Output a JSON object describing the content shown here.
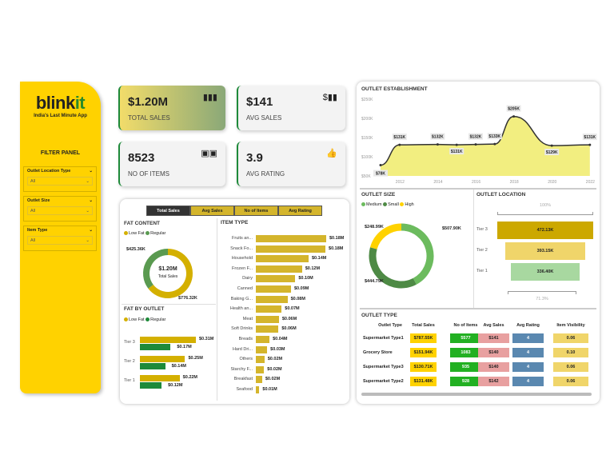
{
  "brand": {
    "name_a": "blink",
    "name_b": "it",
    "tagline": "India's Last Minute App"
  },
  "filter_panel": {
    "title": "FILTER PANEL",
    "filters": [
      {
        "label": "Outlet Location Type",
        "value": "All"
      },
      {
        "label": "Outlet Size",
        "value": "All"
      },
      {
        "label": "Item Type",
        "value": "All"
      }
    ]
  },
  "kpis": [
    {
      "value": "$1.20M",
      "label": "TOTAL SALES",
      "icon": "bar-chart-icon"
    },
    {
      "value": "$141",
      "label": "AVG SALES",
      "icon": "dollar-chart-icon"
    },
    {
      "value": "8523",
      "label": "NO OF ITEMS",
      "icon": "boxes-icon"
    },
    {
      "value": "3.9",
      "label": "AVG RATING",
      "icon": "thumbs-up-icon"
    }
  ],
  "tabs": [
    "Total Sales",
    "Avg Sales",
    "No of Items",
    "Avg Rating"
  ],
  "fat_content": {
    "title": "FAT CONTENT",
    "legend": [
      "Low Fat",
      "Regular"
    ],
    "center_value": "$1.20M",
    "center_label": "Total Sales",
    "low_fat": "$776.32K",
    "regular": "$425.36K",
    "values": [
      776.32,
      425.36
    ],
    "colors": [
      "#d4b000",
      "#5a9a50"
    ]
  },
  "fat_by_outlet": {
    "title": "FAT BY OUTLET",
    "legend": [
      "Low Fat",
      "Regular"
    ],
    "rows": [
      {
        "tier": "Tier 3",
        "low": 0.31,
        "low_label": "$0.31M",
        "reg": 0.17,
        "reg_label": "$0.17M"
      },
      {
        "tier": "Tier 2",
        "low": 0.25,
        "low_label": "$0.25M",
        "reg": 0.14,
        "reg_label": "$0.14M"
      },
      {
        "tier": "Tier 1",
        "low": 0.22,
        "low_label": "$0.22M",
        "reg": 0.12,
        "reg_label": "$0.12M"
      }
    ]
  },
  "item_type": {
    "title": "ITEM TYPE",
    "items": [
      [
        "Fruits an...",
        0.18,
        "$0.18M"
      ],
      [
        "Snack Fo...",
        0.178,
        "$0.18M"
      ],
      [
        "Household",
        0.135,
        "$0.14M"
      ],
      [
        "Frozen F...",
        0.118,
        "$0.12M"
      ],
      [
        "Dairy",
        0.101,
        "$0.10M"
      ],
      [
        "Canned",
        0.09,
        "$0.09M"
      ],
      [
        "Baking G...",
        0.081,
        "$0.08M"
      ],
      [
        "Health an...",
        0.066,
        "$0.07M"
      ],
      [
        "Meat",
        0.059,
        "$0.06M"
      ],
      [
        "Soft Drinks",
        0.058,
        "$0.06M"
      ],
      [
        "Breads",
        0.035,
        "$0.04M"
      ],
      [
        "Hard Dri...",
        0.029,
        "$0.03M"
      ],
      [
        "Others",
        0.022,
        "$0.02M"
      ],
      [
        "Starchy F...",
        0.021,
        "$0.02M"
      ],
      [
        "Breakfast",
        0.016,
        "$0.02M"
      ],
      [
        "Seafood",
        0.009,
        "$0.01M"
      ]
    ]
  },
  "outlet_establishment": {
    "title": "OUTLET ESTABLISHMENT",
    "y_ticks": [
      "$50K",
      "$100K",
      "$150K",
      "$200K",
      "$250K"
    ],
    "x_ticks": [
      "2012",
      "2014",
      "2016",
      "2018",
      "2020",
      "2022"
    ],
    "points": [
      [
        2011,
        78,
        "$78K"
      ],
      [
        2012,
        131,
        "$131K"
      ],
      [
        2014,
        132,
        "$132K"
      ],
      [
        2015,
        131,
        "$131K"
      ],
      [
        2016,
        132,
        "$132K"
      ],
      [
        2017,
        133,
        "$133K"
      ],
      [
        2018,
        205,
        "$205K"
      ],
      [
        2020,
        129,
        "$129K"
      ],
      [
        2022,
        131,
        "$131K"
      ]
    ]
  },
  "outlet_size": {
    "title": "OUTLET SIZE",
    "legend": [
      "Medium",
      "Small",
      "High"
    ],
    "values": [
      507.9,
      444.79,
      248.99
    ],
    "labels": [
      "$507.90K",
      "$444.79K",
      "$248.99K"
    ],
    "colors": [
      "#6cbb5e",
      "#4e8a45",
      "#ffd200"
    ]
  },
  "outlet_location": {
    "title": "OUTLET LOCATION",
    "top_pct": "100%",
    "bottom_pct": "71.3%",
    "rows": [
      {
        "tier": "Tier 3",
        "value": 472.13,
        "label": "472.13K",
        "color": "#cca800"
      },
      {
        "tier": "Tier 2",
        "value": 393.15,
        "label": "393.15K",
        "color": "#f0d56a"
      },
      {
        "tier": "Tier 1",
        "value": 336.4,
        "label": "336.40K",
        "color": "#a8d8a0"
      }
    ]
  },
  "outlet_type": {
    "title": "OUTLET TYPE",
    "columns": [
      "Outlet Type",
      "Total Sales",
      "No of Items",
      "Avg Sales",
      "Avg Rating",
      "Item Visibility"
    ],
    "rows": [
      [
        "Supermarket Type1",
        "$787.55K",
        "5577",
        "$141",
        "4",
        "0.06"
      ],
      [
        "Grocery Store",
        "$151.94K",
        "1083",
        "$140",
        "4",
        "0.10"
      ],
      [
        "Supermarket Type3",
        "$130.71K",
        "935",
        "$140",
        "4",
        "0.06"
      ],
      [
        "Supermarket Type2",
        "$131.48K",
        "928",
        "$142",
        "4",
        "0.06"
      ]
    ],
    "colors": [
      "#ffd200",
      "#22b022",
      "#e8a0a0",
      "#5a88b0",
      "#f0d56a"
    ]
  }
}
